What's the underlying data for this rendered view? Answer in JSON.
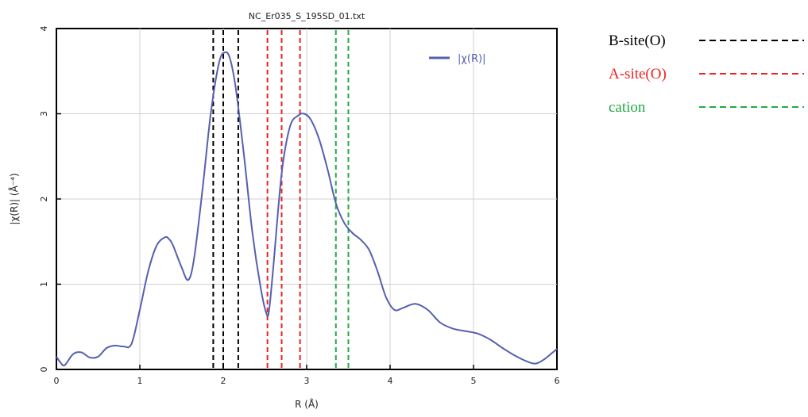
{
  "chart_data": {
    "type": "line",
    "title": "NC_Er035_S_195SD_01.txt",
    "xlabel": "R (Å)",
    "ylabel": "|χ(R)| (Å⁻⁴)",
    "xlim": [
      0,
      6
    ],
    "ylim": [
      0,
      4
    ],
    "xticks": [
      "0",
      "1",
      "2",
      "3",
      "4",
      "5",
      "6"
    ],
    "yticks": [
      "0",
      "1",
      "2",
      "3",
      "4"
    ],
    "grid": true,
    "legend": {
      "placement": "top-right",
      "label": "|χ(R)|"
    },
    "series": [
      {
        "name": "|χ(R)|",
        "color": "#5560b0",
        "x": [
          0.0,
          0.05,
          0.1,
          0.2,
          0.3,
          0.4,
          0.5,
          0.6,
          0.7,
          0.8,
          0.9,
          1.0,
          1.1,
          1.2,
          1.3,
          1.35,
          1.4,
          1.5,
          1.58,
          1.65,
          1.75,
          1.85,
          1.95,
          2.02,
          2.08,
          2.15,
          2.25,
          2.35,
          2.45,
          2.52,
          2.55,
          2.6,
          2.7,
          2.8,
          2.9,
          2.97,
          3.05,
          3.15,
          3.25,
          3.35,
          3.45,
          3.55,
          3.65,
          3.75,
          3.85,
          3.95,
          4.05,
          4.15,
          4.3,
          4.45,
          4.6,
          4.75,
          4.9,
          5.05,
          5.2,
          5.35,
          5.5,
          5.65,
          5.75,
          5.85,
          5.95,
          6.0
        ],
        "y": [
          0.15,
          0.08,
          0.05,
          0.18,
          0.2,
          0.14,
          0.15,
          0.25,
          0.28,
          0.27,
          0.3,
          0.7,
          1.15,
          1.45,
          1.55,
          1.53,
          1.45,
          1.2,
          1.05,
          1.3,
          2.1,
          3.0,
          3.6,
          3.72,
          3.65,
          3.3,
          2.5,
          1.6,
          0.95,
          0.65,
          0.7,
          1.2,
          2.3,
          2.85,
          2.98,
          3.0,
          2.93,
          2.7,
          2.35,
          1.95,
          1.72,
          1.6,
          1.52,
          1.4,
          1.15,
          0.85,
          0.7,
          0.72,
          0.77,
          0.7,
          0.55,
          0.48,
          0.45,
          0.42,
          0.35,
          0.25,
          0.16,
          0.09,
          0.07,
          0.12,
          0.2,
          0.24
        ]
      }
    ],
    "vlines": [
      {
        "group": "B-site(O)",
        "color": "#000000",
        "x": [
          1.88,
          2.0,
          2.18
        ]
      },
      {
        "group": "A-site(O)",
        "color": "#ee2222",
        "x": [
          2.53,
          2.7,
          2.92
        ]
      },
      {
        "group": "cation",
        "color": "#22aa44",
        "x": [
          3.35,
          3.5
        ]
      }
    ]
  },
  "key": [
    {
      "label": "B-site(O)",
      "color": "#000000"
    },
    {
      "label": "A-site(O)",
      "color": "#ee2222"
    },
    {
      "label": "cation",
      "color": "#22aa44"
    }
  ]
}
